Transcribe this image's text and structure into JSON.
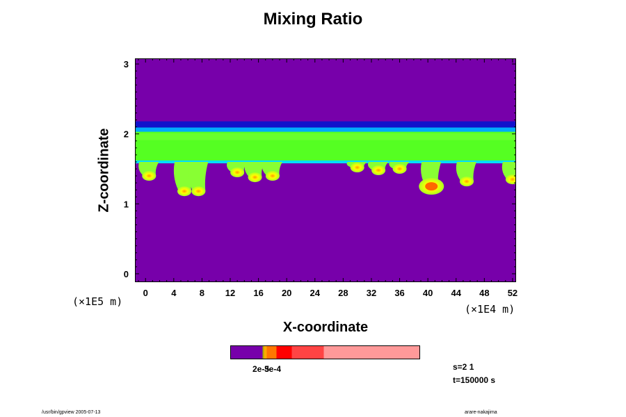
{
  "chart_data": {
    "type": "heatmap",
    "title": "Mixing Ratio",
    "xlabel": "X-coordinate",
    "ylabel": "Z-coordinate",
    "x_scale_note": "(×1E4 m)",
    "y_scale_note": "(×1E5 m)",
    "xlim": [
      -1.5,
      52.5
    ],
    "ylim": [
      -0.12,
      3.08
    ],
    "x_ticks": [
      0,
      4,
      8,
      12,
      16,
      20,
      24,
      28,
      32,
      36,
      40,
      44,
      48,
      52
    ],
    "y_ticks": [
      0,
      1,
      2,
      3
    ],
    "background_color": "#7700aa",
    "layer": {
      "z_top": 2.15,
      "z_bottom": 1.58,
      "color": "#55ff22"
    },
    "plumes": [
      {
        "x": 0.5,
        "z": 1.4
      },
      {
        "x": 5.5,
        "z": 1.18
      },
      {
        "x": 7.5,
        "z": 1.18
      },
      {
        "x": 13,
        "z": 1.45
      },
      {
        "x": 15.5,
        "z": 1.38
      },
      {
        "x": 18,
        "z": 1.4
      },
      {
        "x": 30,
        "z": 1.52
      },
      {
        "x": 33,
        "z": 1.48
      },
      {
        "x": 36,
        "z": 1.5
      },
      {
        "x": 40.5,
        "z": 1.25
      },
      {
        "x": 45.5,
        "z": 1.32
      },
      {
        "x": 52,
        "z": 1.35
      }
    ],
    "colorbar": {
      "colors": [
        "#7700aa",
        "#aaaa00",
        "#ffaa00",
        "#ff7700",
        "#ff0000",
        "#ff4444",
        "#ff9999"
      ],
      "labels": [
        "2e-5",
        "3e-4"
      ]
    }
  },
  "info": {
    "step": "s=2 1",
    "time": "t=150000 s"
  },
  "footer": {
    "left": "/usr/bin/gpview 2005-07-13",
    "right": "arare-nakajima"
  }
}
